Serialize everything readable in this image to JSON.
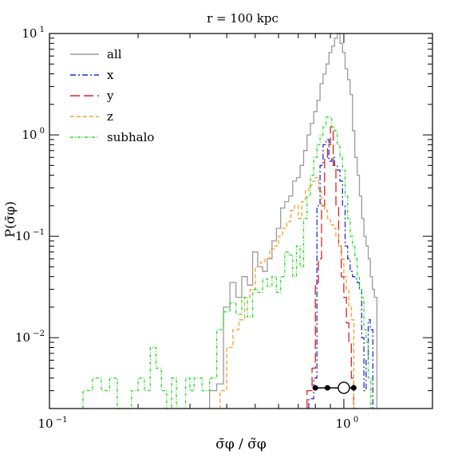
{
  "chart_data": {
    "type": "line",
    "title": "r = 100 kpc",
    "xlabel": "σ̄φ / σ̃φ",
    "ylabel": "P(σ̄φ)",
    "xscale": "log",
    "yscale": "log",
    "xlim": [
      0.1,
      2.0
    ],
    "ylim": [
      0.002,
      10
    ],
    "grid": false,
    "legend_position": "top-left",
    "x_ticks": [
      {
        "value": 0.1,
        "base": "10",
        "exp": "−1"
      },
      {
        "value": 1,
        "base": "10",
        "exp": "0"
      }
    ],
    "y_ticks": [
      {
        "value": 0.01,
        "base": "10",
        "exp": "−2"
      },
      {
        "value": 0.1,
        "base": "10",
        "exp": "−1"
      },
      {
        "value": 1,
        "base": "10",
        "exp": "0"
      },
      {
        "value": 10,
        "base": "10",
        "exp": "1"
      }
    ],
    "series": [
      {
        "name": "all",
        "color": "#9a9a9a",
        "dash": "",
        "points": [
          [
            0.35,
            0.003
          ],
          [
            0.37,
            0.0035
          ],
          [
            0.39,
            0.02
          ],
          [
            0.41,
            0.035
          ],
          [
            0.43,
            0.025
          ],
          [
            0.45,
            0.04
          ],
          [
            0.47,
            0.033
          ],
          [
            0.49,
            0.07
          ],
          [
            0.51,
            0.05
          ],
          [
            0.53,
            0.045
          ],
          [
            0.55,
            0.06
          ],
          [
            0.57,
            0.09
          ],
          [
            0.59,
            0.12
          ],
          [
            0.61,
            0.19
          ],
          [
            0.63,
            0.22
          ],
          [
            0.65,
            0.25
          ],
          [
            0.67,
            0.35
          ],
          [
            0.69,
            0.38
          ],
          [
            0.71,
            0.5
          ],
          [
            0.73,
            0.7
          ],
          [
            0.75,
            1.0
          ],
          [
            0.77,
            1.3
          ],
          [
            0.79,
            1.7
          ],
          [
            0.81,
            2.2
          ],
          [
            0.83,
            3.2
          ],
          [
            0.85,
            4.0
          ],
          [
            0.87,
            5.0
          ],
          [
            0.89,
            6.5
          ],
          [
            0.91,
            7.5
          ],
          [
            0.93,
            9.0
          ],
          [
            0.95,
            10.0
          ],
          [
            0.97,
            8.0
          ],
          [
            0.99,
            6.5
          ],
          [
            1.01,
            4.5
          ],
          [
            1.03,
            3.5
          ],
          [
            1.05,
            2.5
          ],
          [
            1.07,
            1.1
          ],
          [
            1.09,
            0.6
          ],
          [
            1.11,
            0.4
          ],
          [
            1.13,
            0.25
          ],
          [
            1.15,
            0.15
          ],
          [
            1.17,
            0.1
          ],
          [
            1.19,
            0.08
          ],
          [
            1.21,
            0.06
          ],
          [
            1.23,
            0.04
          ],
          [
            1.25,
            0.03
          ],
          [
            1.27,
            0.025
          ]
        ]
      },
      {
        "name": "x",
        "color": "#1f2fd0",
        "dash": "7,3,2,3",
        "points": [
          [
            0.76,
            0.0025
          ],
          [
            0.79,
            0.004
          ],
          [
            0.81,
            0.2
          ],
          [
            0.83,
            0.5
          ],
          [
            0.85,
            0.8
          ],
          [
            0.87,
            0.9
          ],
          [
            0.89,
            0.55
          ],
          [
            0.91,
            0.6
          ],
          [
            0.93,
            0.5
          ],
          [
            0.95,
            0.45
          ],
          [
            0.97,
            0.35
          ],
          [
            0.99,
            0.2
          ],
          [
            1.01,
            0.08
          ],
          [
            1.03,
            0.06
          ],
          [
            1.05,
            0.045
          ],
          [
            1.07,
            0.04
          ],
          [
            1.09,
            0.038
          ],
          [
            1.11,
            0.035
          ],
          [
            1.13,
            0.03
          ],
          [
            1.15,
            0.01
          ],
          [
            1.17,
            0.003
          ],
          [
            1.19,
            0.006
          ],
          [
            1.21,
            0.015
          ],
          [
            1.23,
            0.012
          ]
        ]
      },
      {
        "name": "y",
        "color": "#e02020",
        "dash": "12,5",
        "points": [
          [
            0.75,
            0.003
          ],
          [
            0.78,
            0.005
          ],
          [
            0.8,
            0.035
          ],
          [
            0.82,
            0.06
          ],
          [
            0.84,
            0.2
          ],
          [
            0.86,
            0.6
          ],
          [
            0.88,
            0.8
          ],
          [
            0.9,
            1.2
          ],
          [
            0.92,
            0.5
          ],
          [
            0.94,
            0.2
          ],
          [
            0.96,
            0.08
          ],
          [
            0.98,
            0.04
          ],
          [
            1.0,
            0.025
          ],
          [
            1.02,
            0.014
          ],
          [
            1.04,
            0.009
          ],
          [
            1.06,
            0.004
          ],
          [
            1.08,
            0.002
          ]
        ]
      },
      {
        "name": "z",
        "color": "#f0a030",
        "dash": "5,3",
        "points": [
          [
            0.36,
            0.002
          ],
          [
            0.38,
            0.003
          ],
          [
            0.4,
            0.008
          ],
          [
            0.42,
            0.012
          ],
          [
            0.44,
            0.015
          ],
          [
            0.46,
            0.025
          ],
          [
            0.48,
            0.03
          ],
          [
            0.5,
            0.05
          ],
          [
            0.52,
            0.055
          ],
          [
            0.54,
            0.06
          ],
          [
            0.56,
            0.075
          ],
          [
            0.58,
            0.08
          ],
          [
            0.6,
            0.1
          ],
          [
            0.62,
            0.12
          ],
          [
            0.64,
            0.14
          ],
          [
            0.66,
            0.18
          ],
          [
            0.68,
            0.2
          ],
          [
            0.7,
            0.15
          ],
          [
            0.72,
            0.22
          ],
          [
            0.74,
            0.28
          ],
          [
            0.76,
            0.32
          ],
          [
            0.78,
            0.35
          ],
          [
            0.8,
            0.38
          ],
          [
            0.82,
            0.28
          ],
          [
            0.84,
            0.2
          ],
          [
            0.86,
            0.18
          ],
          [
            0.88,
            0.15
          ],
          [
            0.9,
            0.13
          ],
          [
            0.92,
            0.12
          ],
          [
            0.94,
            0.1
          ],
          [
            0.96,
            0.08
          ],
          [
            0.98,
            0.06
          ],
          [
            1.0,
            0.04
          ],
          [
            1.02,
            0.03
          ],
          [
            1.04,
            0.02
          ],
          [
            1.06,
            0.015
          ]
        ]
      },
      {
        "name": "subhalo",
        "color": "#22dd22",
        "dash": "4,2,1,2",
        "points": [
          [
            0.13,
            0.003
          ],
          [
            0.14,
            0.004
          ],
          [
            0.15,
            0.003
          ],
          [
            0.16,
            0.004
          ],
          [
            0.17,
            0.002
          ],
          [
            0.19,
            0.003
          ],
          [
            0.2,
            0.004
          ],
          [
            0.21,
            0.003
          ],
          [
            0.22,
            0.008
          ],
          [
            0.23,
            0.005
          ],
          [
            0.24,
            0.003
          ],
          [
            0.25,
            0.002
          ],
          [
            0.26,
            0.004
          ],
          [
            0.27,
            0.002
          ],
          [
            0.29,
            0.004
          ],
          [
            0.3,
            0.003
          ],
          [
            0.31,
            0.004
          ],
          [
            0.33,
            0.003
          ],
          [
            0.35,
            0.004
          ],
          [
            0.37,
            0.012
          ],
          [
            0.39,
            0.018
          ],
          [
            0.41,
            0.022
          ],
          [
            0.43,
            0.017
          ],
          [
            0.45,
            0.025
          ],
          [
            0.47,
            0.016
          ],
          [
            0.49,
            0.03
          ],
          [
            0.51,
            0.028
          ],
          [
            0.53,
            0.038
          ],
          [
            0.55,
            0.032
          ],
          [
            0.57,
            0.04
          ],
          [
            0.59,
            0.028
          ],
          [
            0.61,
            0.04
          ],
          [
            0.63,
            0.07
          ],
          [
            0.65,
            0.065
          ],
          [
            0.67,
            0.04
          ],
          [
            0.69,
            0.08
          ],
          [
            0.71,
            0.05
          ],
          [
            0.73,
            0.15
          ],
          [
            0.75,
            0.25
          ],
          [
            0.77,
            0.4
          ],
          [
            0.79,
            0.6
          ],
          [
            0.81,
            0.8
          ],
          [
            0.83,
            1.0
          ],
          [
            0.85,
            1.2
          ],
          [
            0.87,
            1.5
          ],
          [
            0.89,
            1.5
          ],
          [
            0.91,
            1.2
          ],
          [
            0.93,
            1.1
          ],
          [
            0.95,
            0.8
          ],
          [
            0.97,
            0.6
          ],
          [
            0.99,
            0.45
          ],
          [
            1.01,
            0.25
          ],
          [
            1.03,
            0.15
          ],
          [
            1.05,
            0.1
          ],
          [
            1.07,
            0.08
          ],
          [
            1.09,
            0.06
          ],
          [
            1.11,
            0.04
          ],
          [
            1.13,
            0.03
          ],
          [
            1.15,
            0.025
          ],
          [
            1.17,
            0.012
          ],
          [
            1.19,
            0.009
          ],
          [
            1.21,
            0.004
          ]
        ]
      }
    ],
    "error_bar": {
      "y": 0.0032,
      "x_low": 0.8,
      "x_high": 1.08,
      "filled": [
        0.8,
        0.88,
        1.08
      ],
      "open": [
        1.0
      ]
    }
  }
}
